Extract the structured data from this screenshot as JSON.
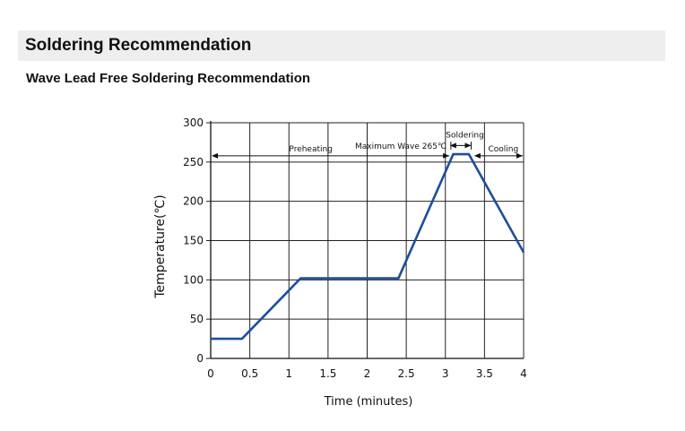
{
  "section": {
    "title": "Soldering Recommendation"
  },
  "subsection": {
    "title": "Wave Lead Free Soldering Recommendation"
  },
  "chart_data": {
    "type": "line",
    "title": "",
    "xlabel": "Time (minutes)",
    "ylabel": "Temperature(℃)",
    "xlim": [
      0,
      4
    ],
    "ylim": [
      0,
      300
    ],
    "xticks": [
      "0",
      "0.5",
      "1",
      "1.5",
      "2",
      "2.5",
      "3",
      "3.5",
      "4"
    ],
    "yticks": [
      "0",
      "50",
      "100",
      "150",
      "200",
      "250",
      "300"
    ],
    "grid": true,
    "line_color": "#1f4e9c",
    "series": [
      {
        "x": [
          0,
          0.4,
          1.15,
          2.4,
          3.1,
          3.3,
          4.0
        ],
        "y": [
          25,
          25,
          102,
          102,
          260,
          260,
          135
        ]
      }
    ],
    "annotations": {
      "preheating": "Preheating",
      "max_wave": "Maximum Wave 265℃",
      "soldering": "Soldering",
      "cooling": "Cooling"
    }
  }
}
